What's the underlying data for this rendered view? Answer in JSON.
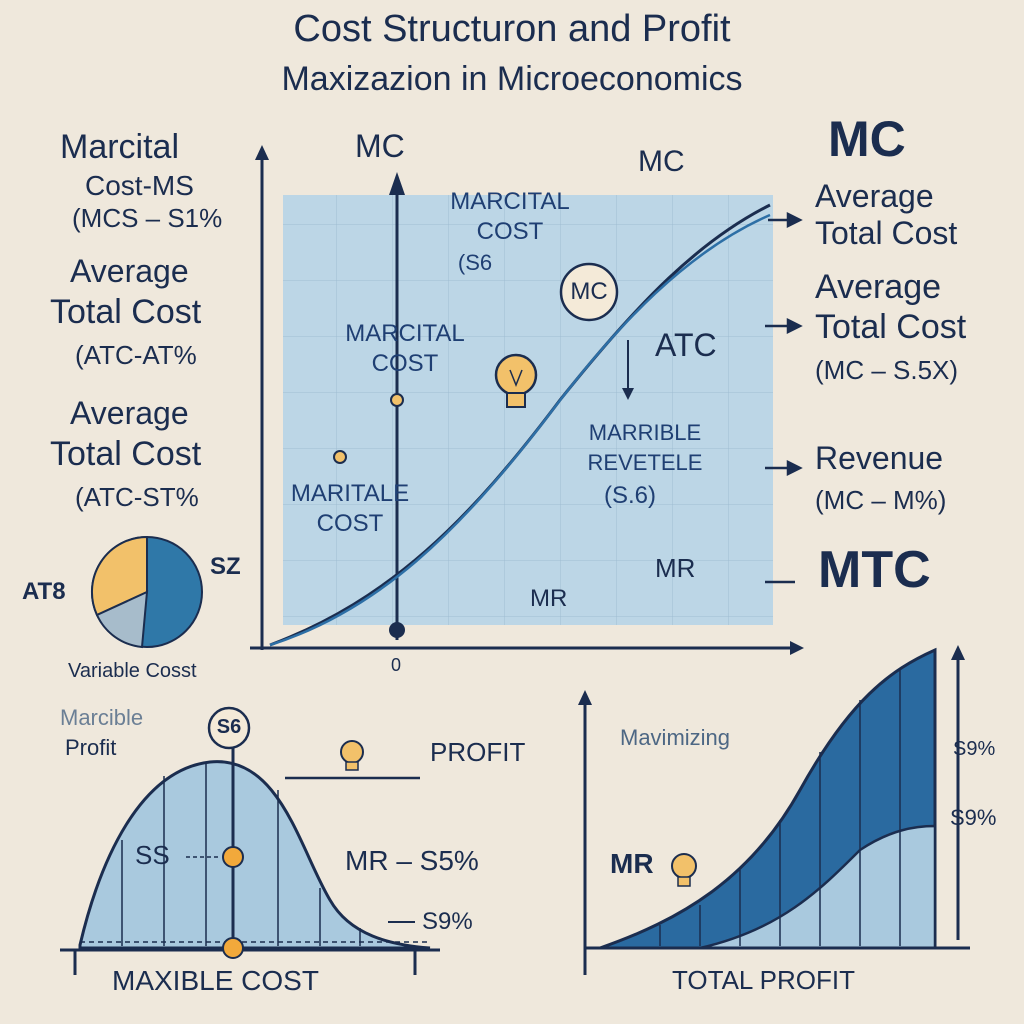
{
  "title": {
    "line1": "Cost Structuron and Profit",
    "line2": "Maxizazion in Microeconomics"
  },
  "left_labels": {
    "l1": "Marcital",
    "l2": "Cost-MS",
    "l3": "(MCS – S1%",
    "l4": "Average",
    "l5": "Total Cost",
    "l6": "(ATC-AT%",
    "l7": "Average",
    "l8": "Total Cost",
    "l9": "(ATC-ST%"
  },
  "pie": {
    "left_label": "AT8",
    "right_label": "SZ",
    "caption": "Variable Cosst",
    "colors": [
      "#f2c16a",
      "#2f78a8",
      "#a7bccb"
    ]
  },
  "main_chart": {
    "axis_top_left": "MC",
    "axis_top_mid": "MC",
    "box_l1": "MARCITAL",
    "box_l2": "COST",
    "box_l3": "(S6",
    "bubble": "MC",
    "mc_l1": "MARCITAL",
    "mc_l2": "COST",
    "atc": "ATC",
    "marr_l1": "MARRIBLE",
    "marr_l2": "REVETELE",
    "marr_l3": "(S.6)",
    "mar_l1": "MARITALE",
    "mar_l2": "COST",
    "mr_mid": "MR",
    "mr_right": "MR",
    "zero": "0"
  },
  "right_labels": {
    "mc": "MC",
    "r1": "Average",
    "r2": "Total Cost",
    "r3": "Average",
    "r4": "Total Cost",
    "r5": "(MC – S.5X)",
    "r6": "Revenue",
    "r7": "(MC – M%)",
    "mtc": "MTC"
  },
  "bottom_left": {
    "l1": "Marcible",
    "l2": "Profit",
    "bubble": "S6",
    "profit": "PROFIT",
    "ss": "SS",
    "mr": "MR – S5%",
    "s9": "S9%",
    "caption": "MAXIBLE COST"
  },
  "bottom_right": {
    "label": "Mavimizing",
    "mr": "MR",
    "s9a": "S9%",
    "s9b": "S9%",
    "caption": "TOTAL PROFIT"
  },
  "colors": {
    "navy": "#1b2d4f",
    "panel": "#b9d4e4",
    "fill_dark": "#2a6aa0",
    "fill_light": "#a9c9de",
    "bulb": "#f2c16a"
  }
}
